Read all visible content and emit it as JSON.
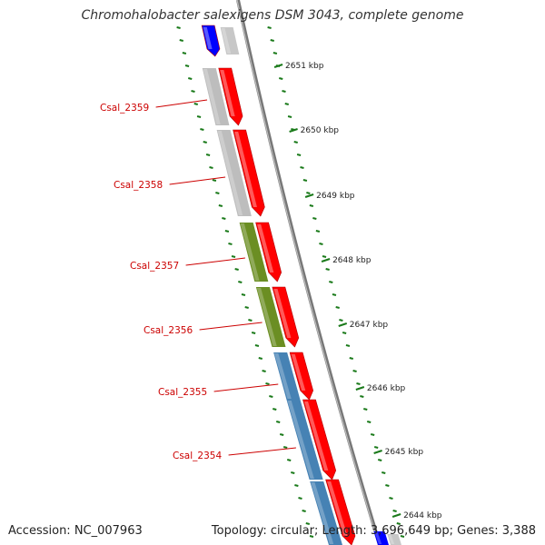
{
  "title": "Chromohalobacter salexigens DSM 3043, complete genome",
  "footer": {
    "accession": "Accession: NC_007963",
    "summary": "Topology: circular; Length: 3,696,649 bp; Genes: 3,388"
  },
  "colors": {
    "cds_forward": "#ff0000",
    "cds_reverse": "#0000ff",
    "cog_gray": "#bdbdbd",
    "cog_green": "#6b8e23",
    "cog_blue": "#4682b4",
    "ticks": "#1a7a1a",
    "backbone": "#777777"
  },
  "scale_labels": [
    "2651 kbp",
    "2650 kbp",
    "2649 kbp",
    "2648 kbp",
    "2647 kbp",
    "2646 kbp",
    "2645 kbp",
    "2644 kbp"
  ],
  "genes": [
    {
      "label": "Csal_2359",
      "cog": "gray"
    },
    {
      "label": "Csal_2358",
      "cog": "gray"
    },
    {
      "label": "Csal_2357",
      "cog": "green"
    },
    {
      "label": "Csal_2356",
      "cog": "green"
    },
    {
      "label": "Csal_2355",
      "cog": "blue"
    },
    {
      "label": "Csal_2354",
      "cog": "blue"
    }
  ]
}
